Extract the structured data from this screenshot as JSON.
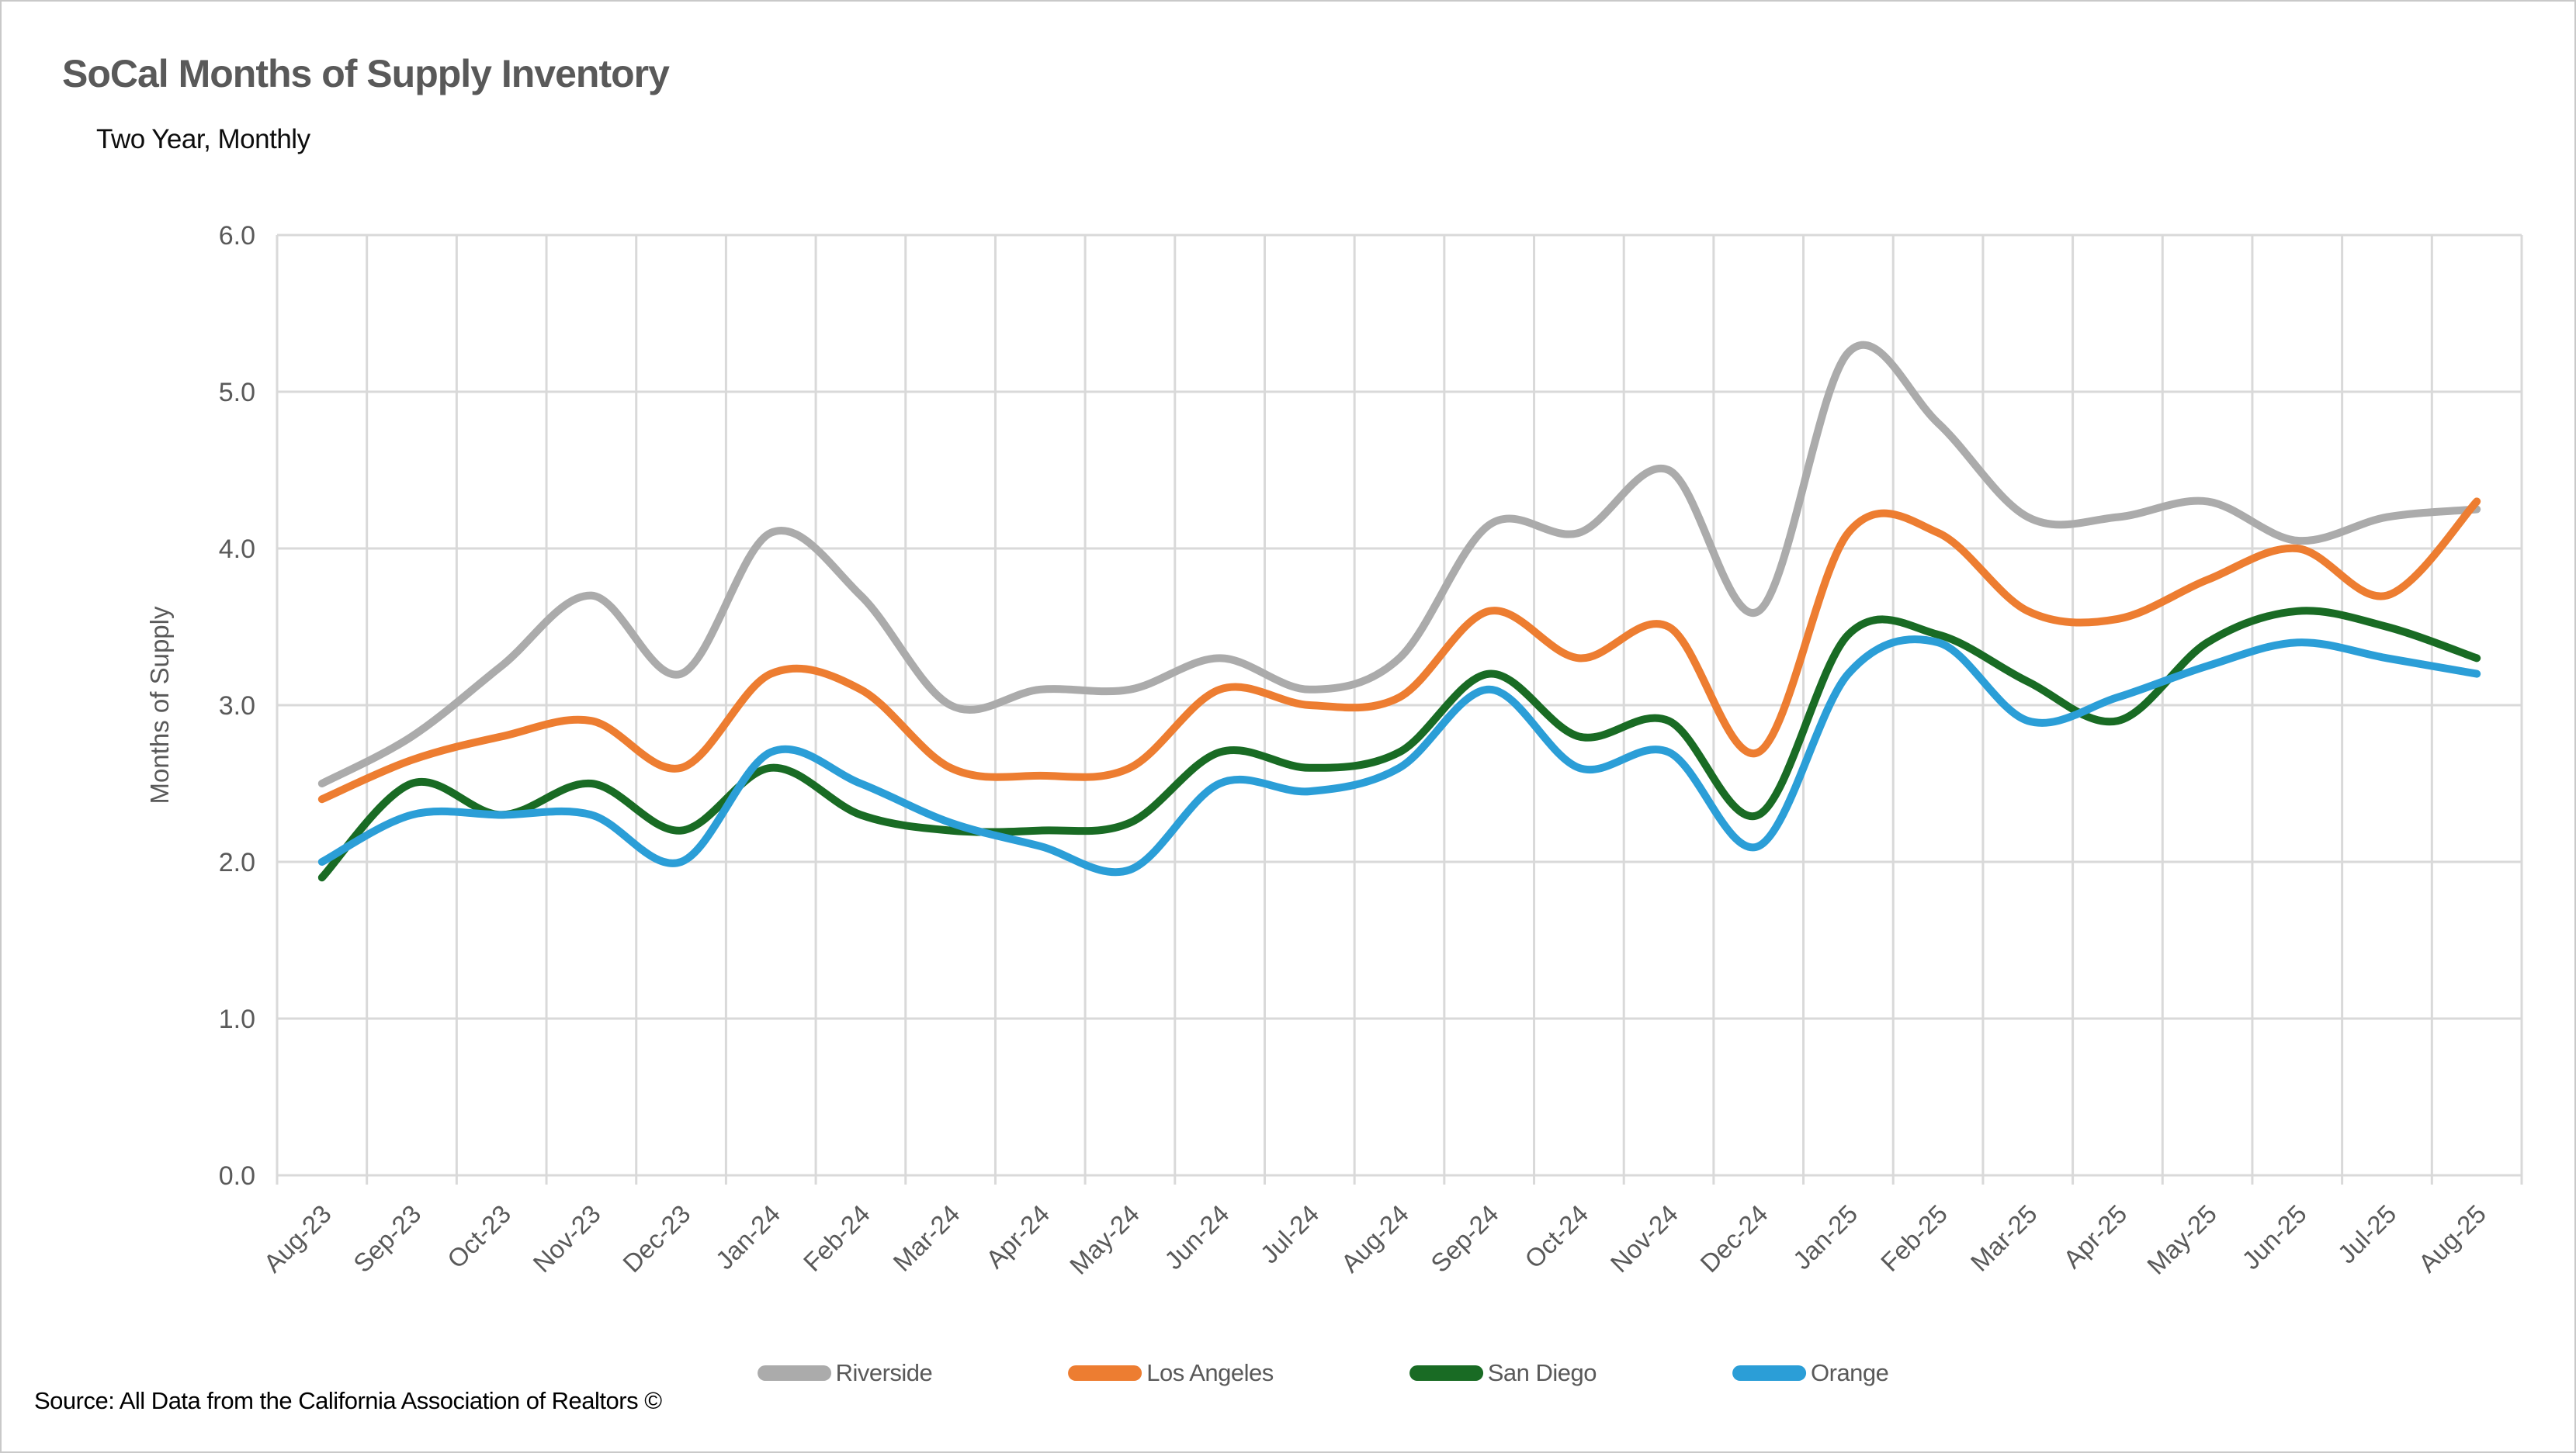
{
  "page": {
    "title": "SoCal Months of Supply Inventory",
    "subtitle": "Two Year, Monthly",
    "source": "Source: All Data from the California Association of Realtors ©"
  },
  "chart_data": {
    "type": "line",
    "title": "SoCal Months of Supply Inventory",
    "subtitle": "Two Year, Monthly",
    "xlabel": "",
    "ylabel": "Months of Supply",
    "ylim": [
      0.0,
      6.0
    ],
    "ytick_step": 1.0,
    "ytick_labels": [
      "0.0",
      "1.0",
      "2.0",
      "3.0",
      "4.0",
      "5.0",
      "6.0"
    ],
    "grid": true,
    "smoothed_lines": true,
    "legend_position": "bottom",
    "axis_text_color": "#595959",
    "gridline_color": "#d9d9d9",
    "categories": [
      "Aug-23",
      "Sep-23",
      "Oct-23",
      "Nov-23",
      "Dec-23",
      "Jan-24",
      "Feb-24",
      "Mar-24",
      "Apr-24",
      "May-24",
      "Jun-24",
      "Jul-24",
      "Aug-24",
      "Sep-24",
      "Oct-24",
      "Nov-24",
      "Dec-24",
      "Jan-25",
      "Feb-25",
      "Mar-25",
      "Apr-25",
      "May-25",
      "Jun-25",
      "Jul-25",
      "Aug-25"
    ],
    "series": [
      {
        "name": "Riverside",
        "color": "#ababab",
        "values": [
          2.5,
          2.8,
          3.25,
          3.7,
          3.2,
          4.1,
          3.7,
          3.0,
          3.1,
          3.1,
          3.3,
          3.1,
          3.3,
          4.15,
          4.1,
          4.5,
          3.6,
          5.25,
          4.8,
          4.2,
          4.2,
          4.3,
          4.05,
          4.2,
          4.25
        ]
      },
      {
        "name": "Los Angeles",
        "color": "#ed7d31",
        "values": [
          2.4,
          2.65,
          2.8,
          2.9,
          2.6,
          3.2,
          3.1,
          2.6,
          2.55,
          2.6,
          3.1,
          3.0,
          3.05,
          3.6,
          3.3,
          3.5,
          2.7,
          4.1,
          4.1,
          3.6,
          3.55,
          3.8,
          4.0,
          3.7,
          4.3
        ]
      },
      {
        "name": "San Diego",
        "color": "#196b24",
        "values": [
          1.9,
          2.5,
          2.3,
          2.5,
          2.2,
          2.6,
          2.3,
          2.2,
          2.2,
          2.25,
          2.7,
          2.6,
          2.7,
          3.2,
          2.8,
          2.9,
          2.3,
          3.45,
          3.45,
          3.15,
          2.9,
          3.4,
          3.6,
          3.5,
          3.3
        ]
      },
      {
        "name": "Orange",
        "color": "#2b9ed7",
        "values": [
          2.0,
          2.3,
          2.3,
          2.3,
          2.0,
          2.7,
          2.5,
          2.25,
          2.1,
          1.95,
          2.5,
          2.45,
          2.6,
          3.1,
          2.6,
          2.7,
          2.1,
          3.2,
          3.4,
          2.9,
          3.05,
          3.25,
          3.4,
          3.3,
          3.2
        ]
      }
    ]
  }
}
